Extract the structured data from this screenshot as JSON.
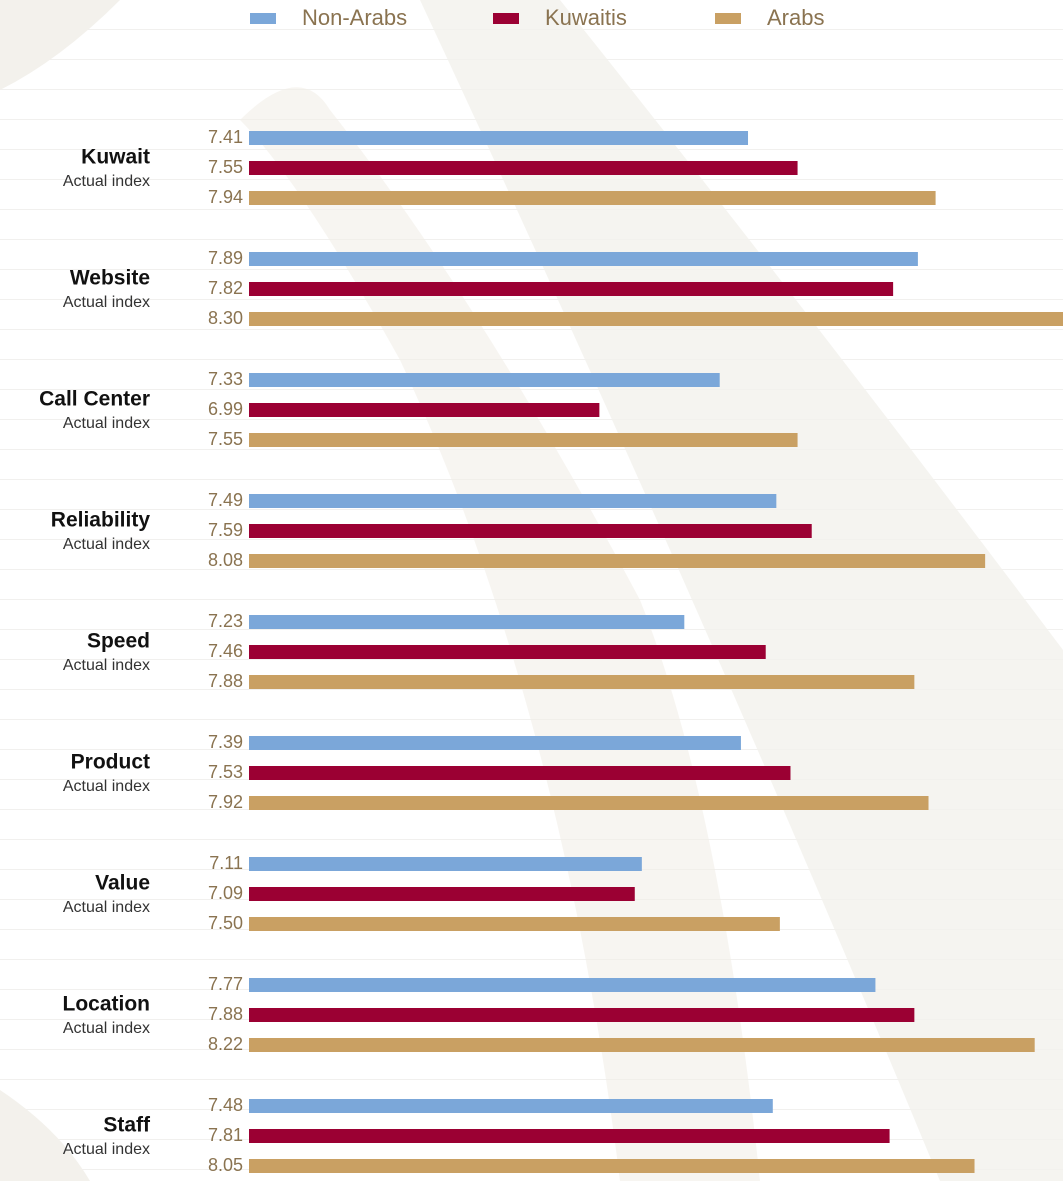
{
  "chart_data": {
    "type": "hbar",
    "categories": [
      "Kuwait",
      "Website",
      "Call Center",
      "Reliability",
      "Speed",
      "Product",
      "Value",
      "Location",
      "Staff"
    ],
    "category_note": "Actual index",
    "series": [
      {
        "name": "Non-Arabs",
        "color": "#7ba7d9",
        "values": [
          7.41,
          7.89,
          7.33,
          7.49,
          7.23,
          7.39,
          7.11,
          7.77,
          7.48
        ],
        "value_labels": [
          "7.41",
          "7.89",
          "7.33",
          "7.49",
          "7.23",
          "7.39",
          "7.11",
          "7.77",
          "7.48"
        ]
      },
      {
        "name": "Kuwaitis",
        "color": "#9b0033",
        "values": [
          7.55,
          7.82,
          6.99,
          7.59,
          7.46,
          7.53,
          7.09,
          7.88,
          7.81
        ],
        "value_labels": [
          "7.55",
          "7.82",
          "6.99",
          "7.59",
          "7.46",
          "7.53",
          "7.09",
          "7.88",
          "7.81"
        ]
      },
      {
        "name": "Arabs",
        "color": "#c9a063",
        "values": [
          7.94,
          8.3,
          7.55,
          8.08,
          7.88,
          7.92,
          7.5,
          8.22,
          8.05
        ],
        "value_labels": [
          "7.94",
          "8.30",
          "7.55",
          "8.08",
          "7.88",
          "7.92",
          "7.50",
          "8.22",
          "8.05"
        ]
      }
    ],
    "xlim": [
      6,
      8.3
    ]
  }
}
